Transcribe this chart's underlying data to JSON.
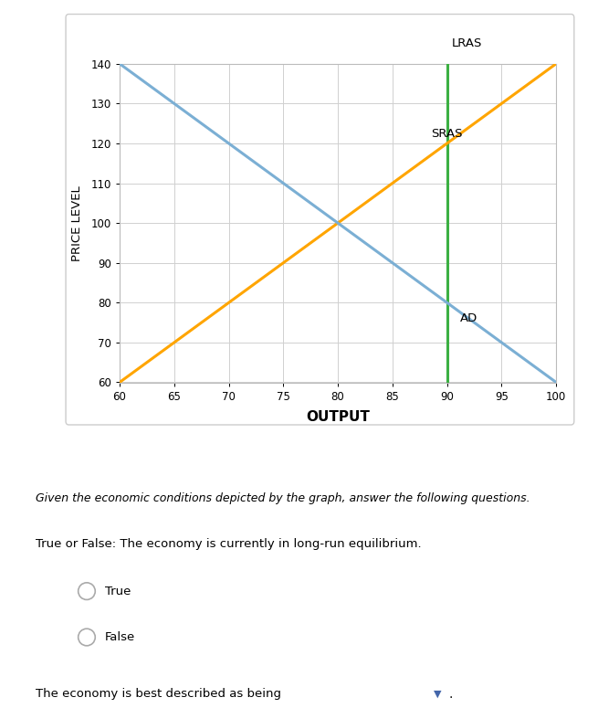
{
  "x_min": 60,
  "x_max": 100,
  "y_min": 60,
  "y_max": 140,
  "x_ticks": [
    60,
    65,
    70,
    75,
    80,
    85,
    90,
    95,
    100
  ],
  "y_ticks": [
    60,
    70,
    80,
    90,
    100,
    110,
    120,
    130,
    140
  ],
  "xlabel": "OUTPUT",
  "ylabel": "PRICE LEVEL",
  "lras_x": 90,
  "lras_color": "#3CB043",
  "lras_label": "LRAS",
  "sras_x1": 60,
  "sras_y1": 60,
  "sras_x2": 100,
  "sras_y2": 140,
  "sras_color": "#FFA500",
  "sras_label": "SRAS",
  "ad_x1": 60,
  "ad_y1": 140,
  "ad_x2": 100,
  "ad_y2": 60,
  "ad_color": "#7BAFD4",
  "ad_label": "AD",
  "grid_color": "#d0d0d0",
  "separator_color": "#C8B560",
  "question_text": "Given the economic conditions depicted by the graph, answer the following questions.",
  "tf_question": "True or False: The economy is currently in long-run equilibrium.",
  "option_true": "True",
  "option_false": "False",
  "last_question": "The economy is best described as being",
  "fig_bg": "#ffffff",
  "panel_bg": "#ffffff",
  "panel_border": "#cccccc"
}
